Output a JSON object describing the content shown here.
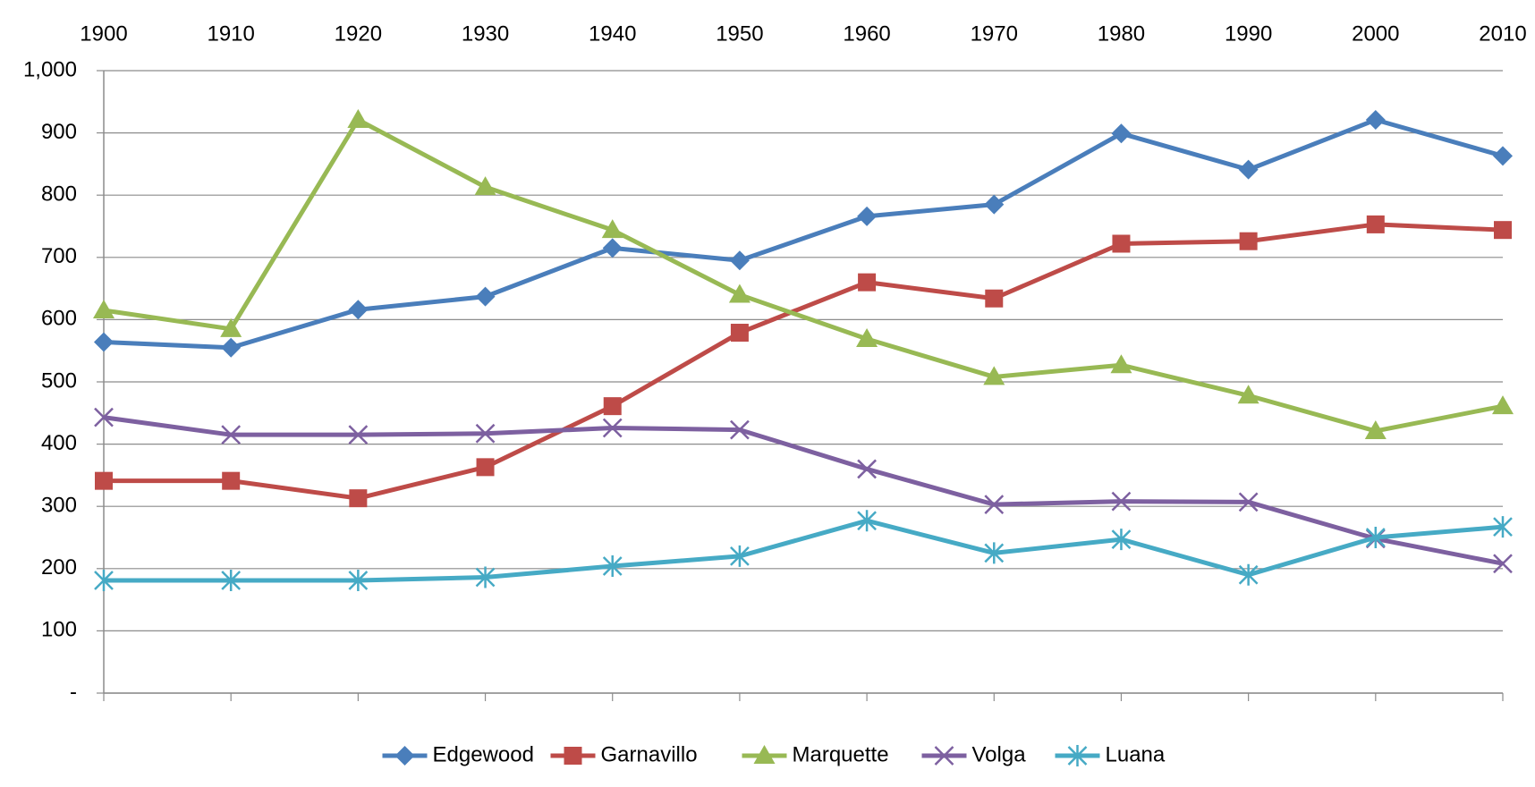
{
  "chart_data": {
    "type": "line",
    "categories": [
      "1900",
      "1910",
      "1920",
      "1930",
      "1940",
      "1950",
      "1960",
      "1970",
      "1980",
      "1990",
      "2000",
      "2010"
    ],
    "series": [
      {
        "name": "Edgewood",
        "color": "#4a7ebb",
        "marker": "diamond",
        "values": [
          564,
          555,
          616,
          637,
          715,
          695,
          766,
          785,
          899,
          841,
          921,
          863
        ]
      },
      {
        "name": "Garnavillo",
        "color": "#be4b48",
        "marker": "square",
        "values": [
          341,
          341,
          313,
          363,
          461,
          579,
          660,
          634,
          722,
          726,
          753,
          744
        ]
      },
      {
        "name": "Marquette",
        "color": "#98b954",
        "marker": "triangle",
        "values": [
          615,
          585,
          921,
          813,
          744,
          640,
          569,
          508,
          527,
          478,
          421,
          461
        ]
      },
      {
        "name": "Volga",
        "color": "#7d60a0",
        "marker": "x",
        "values": [
          443,
          415,
          415,
          417,
          426,
          423,
          360,
          303,
          308,
          307,
          248,
          208
        ]
      },
      {
        "name": "Luana",
        "color": "#46aac5",
        "marker": "star",
        "values": [
          181,
          181,
          181,
          186,
          204,
          220,
          277,
          225,
          247,
          190,
          250,
          267
        ]
      }
    ],
    "ylim": [
      0,
      1000
    ],
    "yticks": [
      {
        "value": 0,
        "label": "-"
      },
      100,
      200,
      300,
      400,
      500,
      600,
      700,
      800,
      900,
      {
        "value": 1000,
        "label": "1,000"
      }
    ],
    "grid": true,
    "legend": "bottom"
  }
}
